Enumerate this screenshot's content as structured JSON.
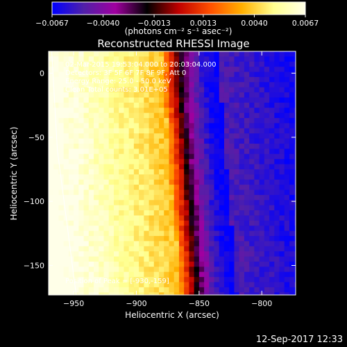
{
  "chart_data": {
    "type": "heatmap",
    "title": "Reconstructed RHESSI Image",
    "xlabel": "Heliocentric X (arcsec)",
    "ylabel": "Heliocentric Y (arcsec)",
    "xlim": [
      -970,
      -773
    ],
    "ylim": [
      -173,
      17
    ],
    "x_ticks": [
      {
        "value": -950,
        "label": "−950"
      },
      {
        "value": -900,
        "label": "−900"
      },
      {
        "value": -850,
        "label": "−850"
      },
      {
        "value": -800,
        "label": "−800"
      }
    ],
    "y_ticks": [
      {
        "value": 0,
        "label": "0"
      },
      {
        "value": -50,
        "label": "−50"
      },
      {
        "value": -100,
        "label": "−100"
      },
      {
        "value": -150,
        "label": "−150"
      }
    ],
    "colorbar": {
      "min": -0.0067,
      "max": 0.0067,
      "ticks": [
        {
          "value": -0.0067,
          "label": "−0.0067"
        },
        {
          "value": -0.004,
          "label": "−0.0040"
        },
        {
          "value": -0.0013,
          "label": "−0.0013"
        },
        {
          "value": 0.0013,
          "label": "0.0013"
        },
        {
          "value": 0.004,
          "label": "0.0040"
        },
        {
          "value": 0.0067,
          "label": "0.0067"
        }
      ],
      "unit_label": "(photons cm⁻² s⁻¹ asec⁻²)",
      "colormap": [
        "#0000ff",
        "#5020a8",
        "#a000a0",
        "#000000",
        "#c00000",
        "#ff5000",
        "#ffb000",
        "#ffff90",
        "#ffffe8"
      ]
    },
    "info_lines": [
      "02-Mar-2015 19:53:04.000 to 20:03:04.000",
      "Detectors: 3F 5F 6F 7F 8F 9F, Att 0",
      "Energy Range: 25.0 - 50.0 keV",
      "Clean    Total counts: 3.01E+05"
    ],
    "peak_label": "Position of Peak = [-930,-159]",
    "limb_line": [
      {
        "x": -967.5,
        "y": 17
      },
      {
        "x": -963,
        "y": -60
      },
      {
        "x": -955,
        "y": -120
      },
      {
        "x": -948,
        "y": -173
      }
    ],
    "image_model": {
      "boundary_points": [
        {
          "y": 17,
          "x": -870
        },
        {
          "y": -25,
          "x": -868
        },
        {
          "y": -60,
          "x": -865
        },
        {
          "y": -100,
          "x": -862
        },
        {
          "y": -140,
          "x": -858
        },
        {
          "y": -173,
          "x": -856
        }
      ],
      "boundary_width_arcsec": 30
    }
  },
  "footer": {
    "date": "12-Sep-2017 12:33"
  }
}
